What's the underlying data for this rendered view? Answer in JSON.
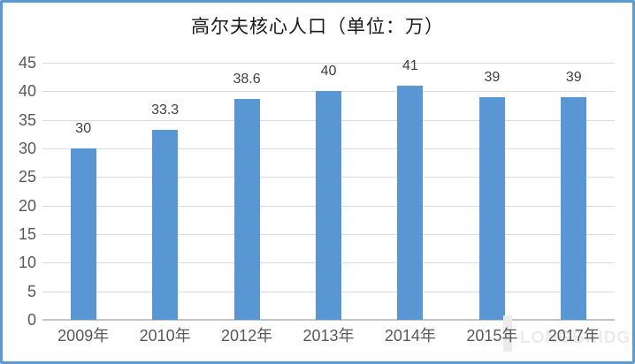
{
  "chart_data": {
    "type": "bar",
    "title": "高尔夫核心人口（单位：万）",
    "categories": [
      "2009年",
      "2010年",
      "2012年",
      "2013年",
      "2014年",
      "2015年",
      "2017年"
    ],
    "values": [
      30,
      33.3,
      38.6,
      40,
      41,
      39,
      39
    ],
    "value_labels": [
      "30",
      "33.3",
      "38.6",
      "40",
      "41",
      "39",
      "39"
    ],
    "xlabel": "",
    "ylabel": "",
    "ylim": [
      0,
      45
    ],
    "yticks": [
      0,
      5,
      10,
      15,
      20,
      25,
      30,
      35,
      40,
      45
    ],
    "grid": true,
    "legend_position": "none",
    "bar_color": "#5897D3"
  },
  "watermark": {
    "text": "LONGBRIDGE"
  },
  "colors": {
    "bar": "#5897D3",
    "border": "#5B9BD5",
    "grid": "#DCDCDC",
    "zero_line": "#C4C4C4",
    "tick_text": "#595959",
    "value_text": "#404040",
    "title_text": "#1A1A1A",
    "watermark": "#EBEBEB"
  }
}
